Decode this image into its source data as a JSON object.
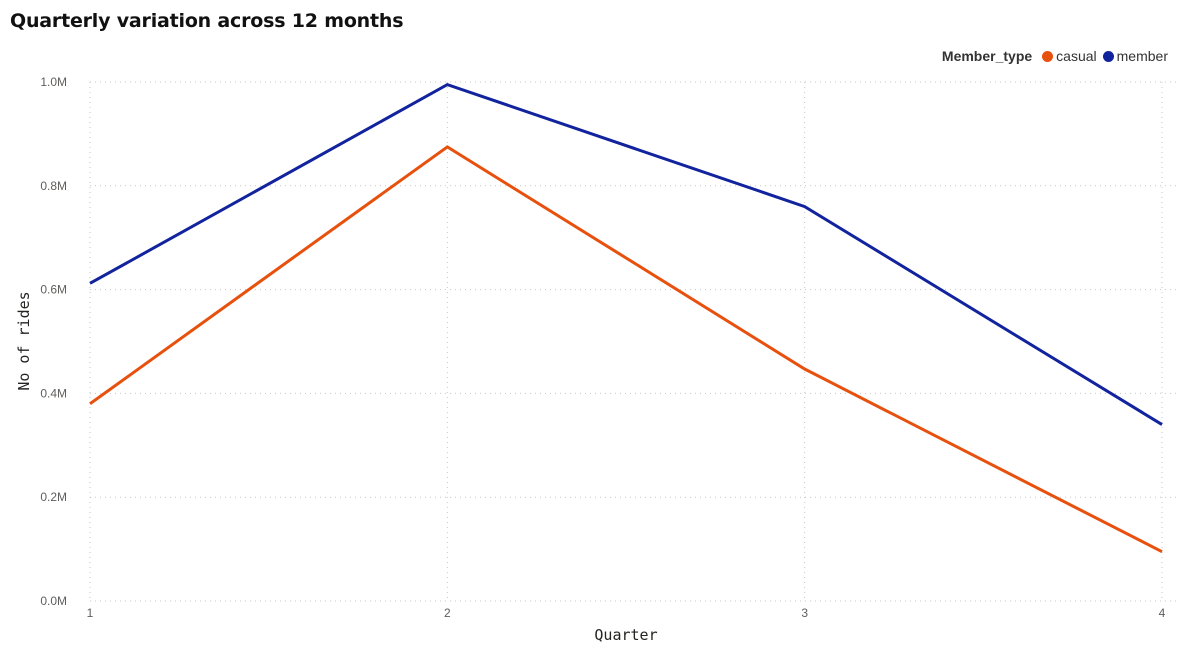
{
  "chart_data": {
    "type": "line",
    "title": "Quarterly variation across 12 months",
    "xlabel": "Quarter",
    "ylabel": "No of rides",
    "categories": [
      "1",
      "2",
      "3",
      "4"
    ],
    "ylim": [
      0,
      1000000
    ],
    "yticks": [
      {
        "value": 0,
        "label": "0.0M"
      },
      {
        "value": 200000,
        "label": "0.2M"
      },
      {
        "value": 400000,
        "label": "0.4M"
      },
      {
        "value": 600000,
        "label": "0.6M"
      },
      {
        "value": 800000,
        "label": "0.8M"
      },
      {
        "value": 1000000,
        "label": "1.0M"
      }
    ],
    "grid": true,
    "legend": {
      "title": "Member_type",
      "placement": "top-right"
    },
    "series": [
      {
        "name": "casual",
        "color": "#e8500e",
        "values": [
          380000,
          875000,
          447000,
          95000
        ]
      },
      {
        "name": "member",
        "color": "#12239e",
        "values": [
          612000,
          995000,
          760000,
          340000
        ]
      }
    ]
  }
}
